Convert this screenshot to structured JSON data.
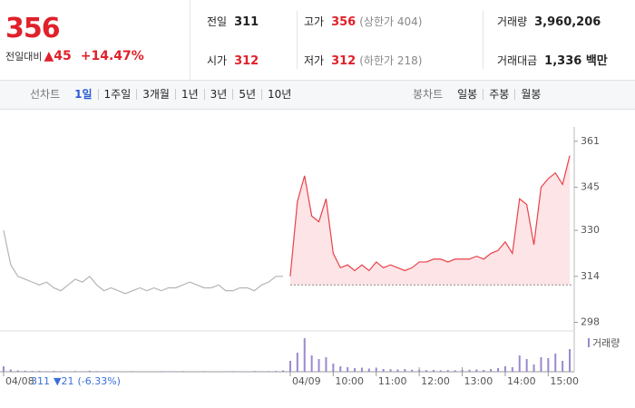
{
  "header": {
    "price": "356",
    "change_label": "전일대비",
    "change": "▲45",
    "change_rate": "+14.47%",
    "stats": [
      {
        "label": "전일",
        "value": "311"
      },
      {
        "label": "고가",
        "value": "356",
        "note": "(상한가 404)"
      },
      {
        "label": "거래량",
        "value": "3,960,206"
      },
      {
        "label": "시가",
        "value": "312"
      },
      {
        "label": "저가",
        "value": "312",
        "note": "(하한가 218)"
      },
      {
        "label": "거래대금",
        "value": "1,336 백만"
      }
    ]
  },
  "tabs": {
    "line_label": "선차트",
    "line_periods": [
      "1일",
      "1주일",
      "3개월",
      "1년",
      "3년",
      "5년",
      "10년"
    ],
    "candle_label": "봉차트",
    "candle_periods": [
      "일봉",
      "주봉",
      "월봉"
    ]
  },
  "chart_data": [
    {
      "type": "line",
      "categories": [
        "04/08",
        null,
        null,
        null,
        null,
        null,
        null,
        null,
        null,
        null,
        null,
        null,
        null,
        null,
        null,
        null,
        null,
        null,
        null,
        null,
        null,
        null,
        null,
        null,
        null,
        null,
        null,
        null,
        null,
        null,
        null,
        null,
        null,
        null,
        null,
        null,
        null,
        null,
        null,
        null,
        "04/09",
        null,
        null,
        null,
        null,
        null,
        "10:00",
        null,
        null,
        null,
        null,
        null,
        "11:00",
        null,
        null,
        null,
        null,
        null,
        "12:00",
        null,
        null,
        null,
        null,
        null,
        "13:00",
        null,
        null,
        null,
        null,
        null,
        "14:00",
        null,
        null,
        null,
        null,
        null,
        "15:00",
        null,
        null,
        null
      ],
      "series": [
        {
          "color": "#b4b4b4",
          "values": [
            330,
            318,
            314,
            313,
            312,
            311,
            312,
            310,
            309,
            311,
            313,
            312,
            314,
            311,
            309,
            310,
            309,
            308,
            309,
            310,
            309,
            310,
            309,
            310,
            310,
            311,
            312,
            311,
            310,
            310,
            311,
            309,
            309,
            310,
            310,
            309,
            311,
            312,
            314,
            314,
            null,
            null,
            null,
            null,
            null,
            null,
            null,
            null,
            null,
            null,
            null,
            null,
            null,
            null,
            null,
            null,
            null,
            null,
            null,
            null,
            null,
            null,
            null,
            null,
            null,
            null,
            null,
            null,
            null,
            null,
            null,
            null,
            null,
            null,
            null,
            null,
            null,
            null,
            null,
            null
          ]
        },
        {
          "color": "#e8424a",
          "fill": "#fde4e6",
          "values": [
            null,
            null,
            null,
            null,
            null,
            null,
            null,
            null,
            null,
            null,
            null,
            null,
            null,
            null,
            null,
            null,
            null,
            null,
            null,
            null,
            null,
            null,
            null,
            null,
            null,
            null,
            null,
            null,
            null,
            null,
            null,
            null,
            null,
            null,
            null,
            null,
            null,
            null,
            null,
            null,
            314,
            340,
            349,
            335,
            333,
            341,
            322,
            317,
            318,
            316,
            318,
            316,
            319,
            317,
            318,
            317,
            316,
            317,
            319,
            319,
            320,
            320,
            319,
            320,
            320,
            320,
            321,
            320,
            322,
            323,
            326,
            322,
            341,
            339,
            325,
            345,
            348,
            350,
            346,
            356
          ]
        }
      ],
      "reference_line": 311,
      "ylim": [
        295,
        366
      ],
      "yticks": [
        298,
        314,
        330,
        345,
        361
      ],
      "annotation": {
        "close": "311",
        "change": "▼21",
        "rate": "(-6.33%)"
      }
    },
    {
      "type": "bar",
      "legend": "거래량",
      "color": "#9b88cf",
      "values": [
        60000,
        25000,
        15000,
        12000,
        8000,
        10000,
        6000,
        9000,
        7000,
        5000,
        8000,
        6000,
        12000,
        7000,
        5000,
        6000,
        4000,
        5000,
        6000,
        4000,
        5000,
        4000,
        6000,
        5000,
        4000,
        7000,
        5000,
        4000,
        6000,
        5000,
        4000,
        5000,
        6000,
        5000,
        4000,
        8000,
        6000,
        7000,
        9000,
        15000,
        120000,
        210000,
        370000,
        180000,
        140000,
        160000,
        90000,
        60000,
        50000,
        40000,
        45000,
        35000,
        40000,
        30000,
        28000,
        25000,
        30000,
        22000,
        20000,
        18000,
        20000,
        15000,
        18000,
        16000,
        20000,
        22000,
        25000,
        20000,
        30000,
        40000,
        60000,
        50000,
        180000,
        140000,
        80000,
        160000,
        150000,
        200000,
        120000,
        250000
      ],
      "ylim": [
        0,
        400000
      ]
    }
  ]
}
